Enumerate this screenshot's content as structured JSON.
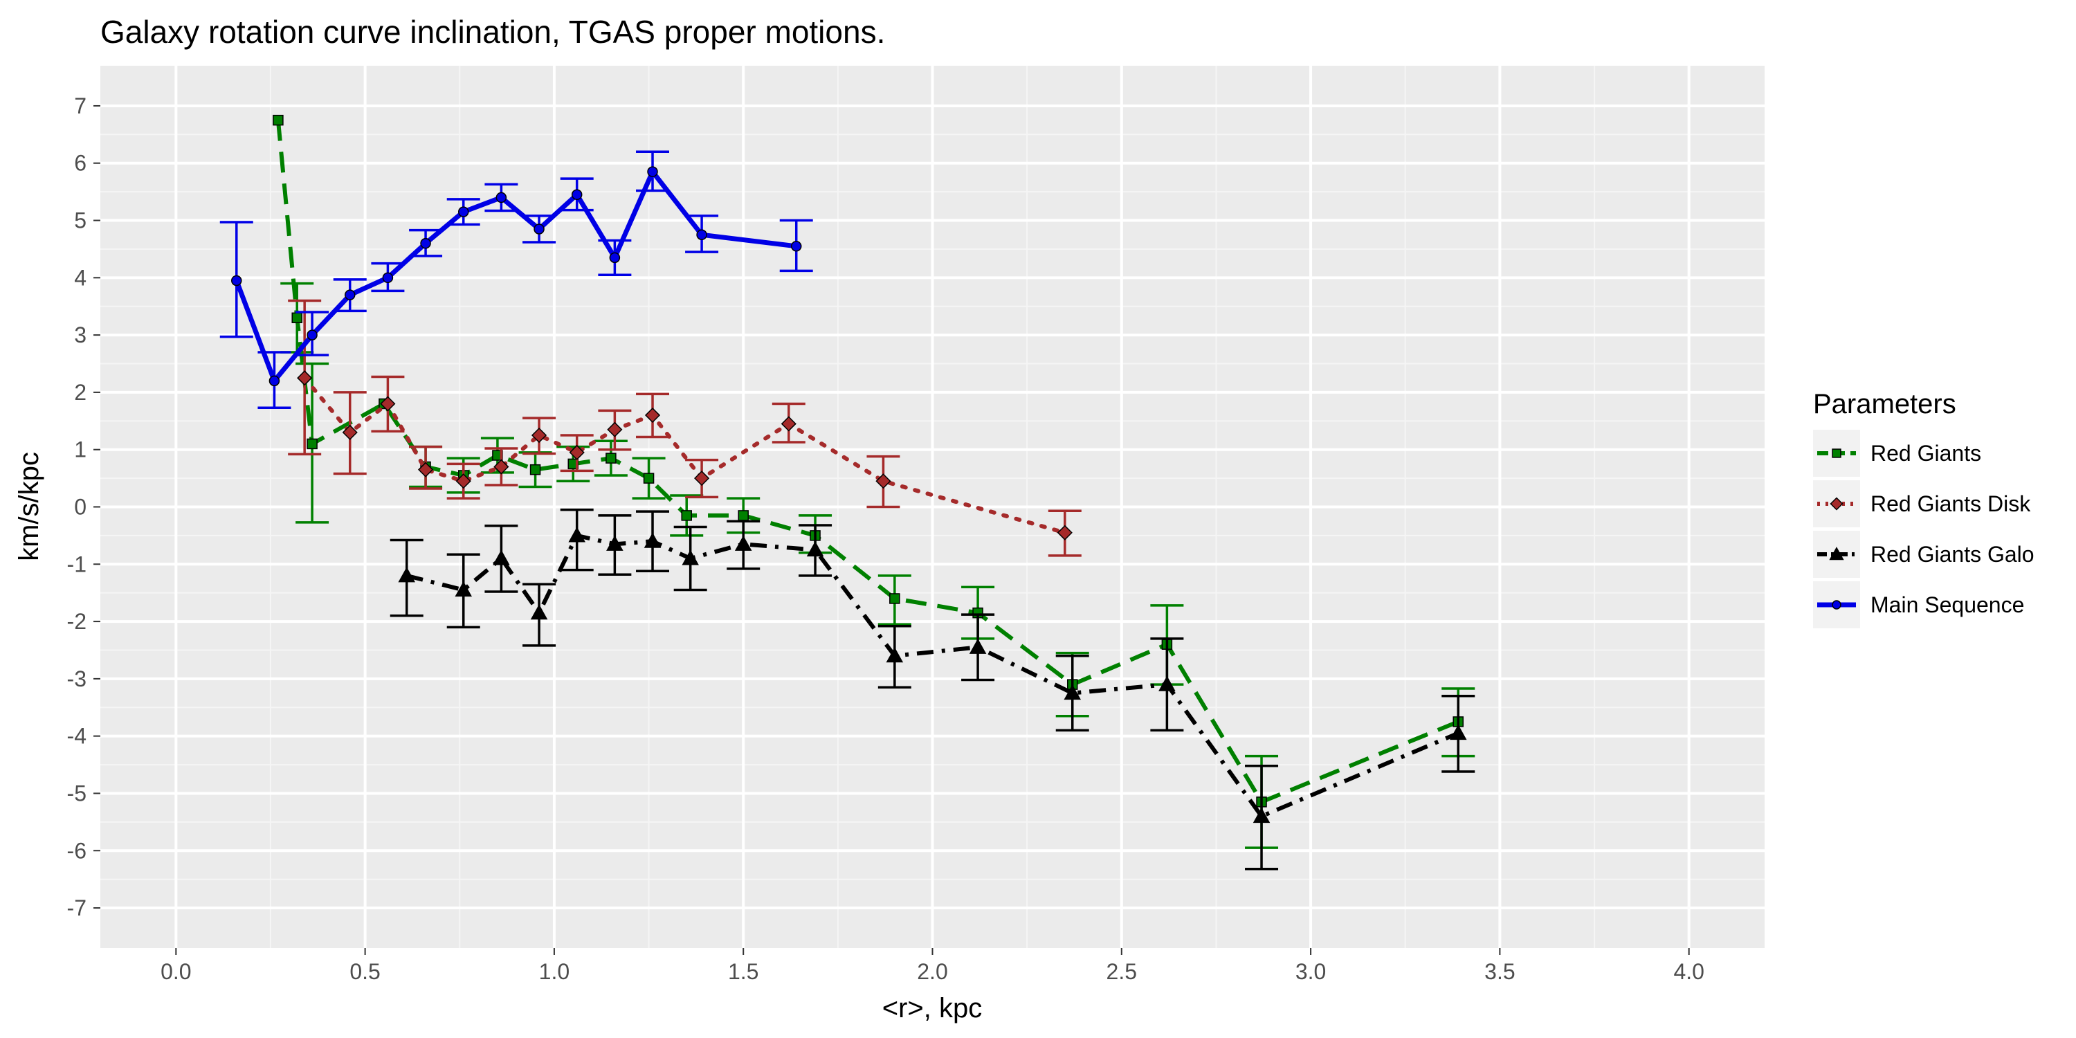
{
  "chart_data": {
    "type": "line",
    "title": "Galaxy rotation curve inclination,  TGAS  proper motions.",
    "xlabel": "<r>, kpc",
    "ylabel": "km/s/kpc",
    "xlim": [
      -0.2,
      4.2
    ],
    "ylim": [
      -7.7,
      7.7
    ],
    "x_ticks": [
      0.0,
      0.5,
      1.0,
      1.5,
      2.0,
      2.5,
      3.0,
      3.5,
      4.0
    ],
    "x_tick_labels": [
      "0.0",
      "0.5",
      "1.0",
      "1.5",
      "2.0",
      "2.5",
      "3.0",
      "3.5",
      "4.0"
    ],
    "y_ticks": [
      7,
      6,
      5,
      4,
      3,
      2,
      1,
      0,
      -1,
      -2,
      -3,
      -4,
      -5,
      -6,
      -7
    ],
    "y_tick_labels": [
      "7",
      "6",
      "5",
      "4",
      "3",
      "2",
      "1",
      "0",
      "-1",
      "-2",
      "-3",
      "-4",
      "-5",
      "-6",
      "-7"
    ],
    "grid": true,
    "background_color": "#ebebeb",
    "legend": {
      "title": "Parameters",
      "position": "right"
    },
    "series": [
      {
        "name": "Red Giants",
        "color": "#008000",
        "line_style": "dashed",
        "marker": "square",
        "points": [
          {
            "x": 0.27,
            "y": 6.75
          },
          {
            "x": 0.32,
            "y": 3.3,
            "err_lo": 2.7,
            "err_hi": 3.9
          },
          {
            "x": 0.36,
            "y": 1.1,
            "err_lo": -0.27,
            "err_hi": 2.5
          },
          {
            "x": 0.55,
            "y": 1.8
          },
          {
            "x": 0.66,
            "y": 0.7,
            "err_lo": 0.35,
            "err_hi": 1.05
          },
          {
            "x": 0.76,
            "y": 0.55,
            "err_lo": 0.25,
            "err_hi": 0.85
          },
          {
            "x": 0.85,
            "y": 0.9,
            "err_lo": 0.6,
            "err_hi": 1.2
          },
          {
            "x": 0.95,
            "y": 0.65,
            "err_lo": 0.35,
            "err_hi": 0.95
          },
          {
            "x": 1.05,
            "y": 0.75,
            "err_lo": 0.45,
            "err_hi": 1.05
          },
          {
            "x": 1.15,
            "y": 0.85,
            "err_lo": 0.55,
            "err_hi": 1.15
          },
          {
            "x": 1.25,
            "y": 0.5,
            "err_lo": 0.15,
            "err_hi": 0.85
          },
          {
            "x": 1.35,
            "y": -0.15,
            "err_lo": -0.5,
            "err_hi": 0.2
          },
          {
            "x": 1.5,
            "y": -0.15,
            "err_lo": -0.45,
            "err_hi": 0.15
          },
          {
            "x": 1.69,
            "y": -0.5,
            "err_lo": -0.8,
            "err_hi": -0.15
          },
          {
            "x": 1.9,
            "y": -1.6,
            "err_lo": -2.05,
            "err_hi": -1.2
          },
          {
            "x": 2.12,
            "y": -1.85,
            "err_lo": -2.3,
            "err_hi": -1.4
          },
          {
            "x": 2.37,
            "y": -3.1,
            "err_lo": -3.65,
            "err_hi": -2.55
          },
          {
            "x": 2.62,
            "y": -2.4,
            "err_lo": -3.1,
            "err_hi": -1.72
          },
          {
            "x": 2.87,
            "y": -5.15,
            "err_lo": -5.95,
            "err_hi": -4.35
          },
          {
            "x": 3.39,
            "y": -3.75,
            "err_lo": -4.35,
            "err_hi": -3.17
          }
        ]
      },
      {
        "name": "Red Giants Disk",
        "color": "#a52a2a",
        "line_style": "dotted",
        "marker": "diamond",
        "points": [
          {
            "x": 0.34,
            "y": 2.25,
            "err_lo": 0.92,
            "err_hi": 3.6
          },
          {
            "x": 0.46,
            "y": 1.3,
            "err_lo": 0.58,
            "err_hi": 2.0
          },
          {
            "x": 0.56,
            "y": 1.8,
            "err_lo": 1.32,
            "err_hi": 2.27
          },
          {
            "x": 0.66,
            "y": 0.65,
            "err_lo": 0.32,
            "err_hi": 1.05
          },
          {
            "x": 0.76,
            "y": 0.45,
            "err_lo": 0.15,
            "err_hi": 0.75
          },
          {
            "x": 0.86,
            "y": 0.7,
            "err_lo": 0.38,
            "err_hi": 1.02
          },
          {
            "x": 0.96,
            "y": 1.25,
            "err_lo": 0.93,
            "err_hi": 1.55
          },
          {
            "x": 1.06,
            "y": 0.95,
            "err_lo": 0.63,
            "err_hi": 1.25
          },
          {
            "x": 1.16,
            "y": 1.35,
            "err_lo": 1.0,
            "err_hi": 1.68
          },
          {
            "x": 1.26,
            "y": 1.6,
            "err_lo": 1.22,
            "err_hi": 1.97
          },
          {
            "x": 1.39,
            "y": 0.5,
            "err_lo": 0.17,
            "err_hi": 0.82
          },
          {
            "x": 1.62,
            "y": 1.45,
            "err_lo": 1.13,
            "err_hi": 1.8
          },
          {
            "x": 1.87,
            "y": 0.45,
            "err_lo": 0.0,
            "err_hi": 0.88
          },
          {
            "x": 2.35,
            "y": -0.45,
            "err_lo": -0.85,
            "err_hi": -0.07
          }
        ]
      },
      {
        "name": "Red Giants Galo",
        "color": "#000000",
        "line_style": "dashdot",
        "marker": "triangle",
        "points": [
          {
            "x": 0.61,
            "y": -1.2,
            "err_lo": -1.9,
            "err_hi": -0.58
          },
          {
            "x": 0.76,
            "y": -1.45,
            "err_lo": -2.1,
            "err_hi": -0.83
          },
          {
            "x": 0.86,
            "y": -0.9,
            "err_lo": -1.48,
            "err_hi": -0.33
          },
          {
            "x": 0.96,
            "y": -1.85,
            "err_lo": -2.42,
            "err_hi": -1.35
          },
          {
            "x": 1.06,
            "y": -0.5,
            "err_lo": -1.1,
            "err_hi": -0.05
          },
          {
            "x": 1.16,
            "y": -0.65,
            "err_lo": -1.18,
            "err_hi": -0.15
          },
          {
            "x": 1.26,
            "y": -0.6,
            "err_lo": -1.12,
            "err_hi": -0.08
          },
          {
            "x": 1.36,
            "y": -0.9,
            "err_lo": -1.45,
            "err_hi": -0.35
          },
          {
            "x": 1.5,
            "y": -0.65,
            "err_lo": -1.08,
            "err_hi": -0.25
          },
          {
            "x": 1.69,
            "y": -0.75,
            "err_lo": -1.2,
            "err_hi": -0.32
          },
          {
            "x": 1.9,
            "y": -2.6,
            "err_lo": -3.15,
            "err_hi": -2.08
          },
          {
            "x": 2.12,
            "y": -2.45,
            "err_lo": -3.02,
            "err_hi": -1.88
          },
          {
            "x": 2.37,
            "y": -3.25,
            "err_lo": -3.9,
            "err_hi": -2.6
          },
          {
            "x": 2.62,
            "y": -3.1,
            "err_lo": -3.9,
            "err_hi": -2.3
          },
          {
            "x": 2.87,
            "y": -5.4,
            "err_lo": -6.32,
            "err_hi": -4.52
          },
          {
            "x": 3.39,
            "y": -3.95,
            "err_lo": -4.62,
            "err_hi": -3.3
          }
        ]
      },
      {
        "name": "Main Sequence",
        "color": "#0000e6",
        "line_style": "solid",
        "marker": "circle",
        "points": [
          {
            "x": 0.16,
            "y": 3.95,
            "err_lo": 2.97,
            "err_hi": 4.97
          },
          {
            "x": 0.26,
            "y": 2.2,
            "err_lo": 1.73,
            "err_hi": 2.7
          },
          {
            "x": 0.36,
            "y": 3.0,
            "err_lo": 2.65,
            "err_hi": 3.4
          },
          {
            "x": 0.46,
            "y": 3.7,
            "err_lo": 3.42,
            "err_hi": 3.97
          },
          {
            "x": 0.56,
            "y": 4.0,
            "err_lo": 3.77,
            "err_hi": 4.25
          },
          {
            "x": 0.66,
            "y": 4.6,
            "err_lo": 4.38,
            "err_hi": 4.83
          },
          {
            "x": 0.76,
            "y": 5.15,
            "err_lo": 4.93,
            "err_hi": 5.37
          },
          {
            "x": 0.86,
            "y": 5.4,
            "err_lo": 5.17,
            "err_hi": 5.63
          },
          {
            "x": 0.96,
            "y": 4.85,
            "err_lo": 4.62,
            "err_hi": 5.08
          },
          {
            "x": 1.06,
            "y": 5.45,
            "err_lo": 5.18,
            "err_hi": 5.73
          },
          {
            "x": 1.16,
            "y": 4.35,
            "err_lo": 4.05,
            "err_hi": 4.65
          },
          {
            "x": 1.26,
            "y": 5.85,
            "err_lo": 5.52,
            "err_hi": 6.2
          },
          {
            "x": 1.39,
            "y": 4.75,
            "err_lo": 4.45,
            "err_hi": 5.08
          },
          {
            "x": 1.64,
            "y": 4.55,
            "err_lo": 4.12,
            "err_hi": 5.0
          }
        ]
      }
    ]
  }
}
